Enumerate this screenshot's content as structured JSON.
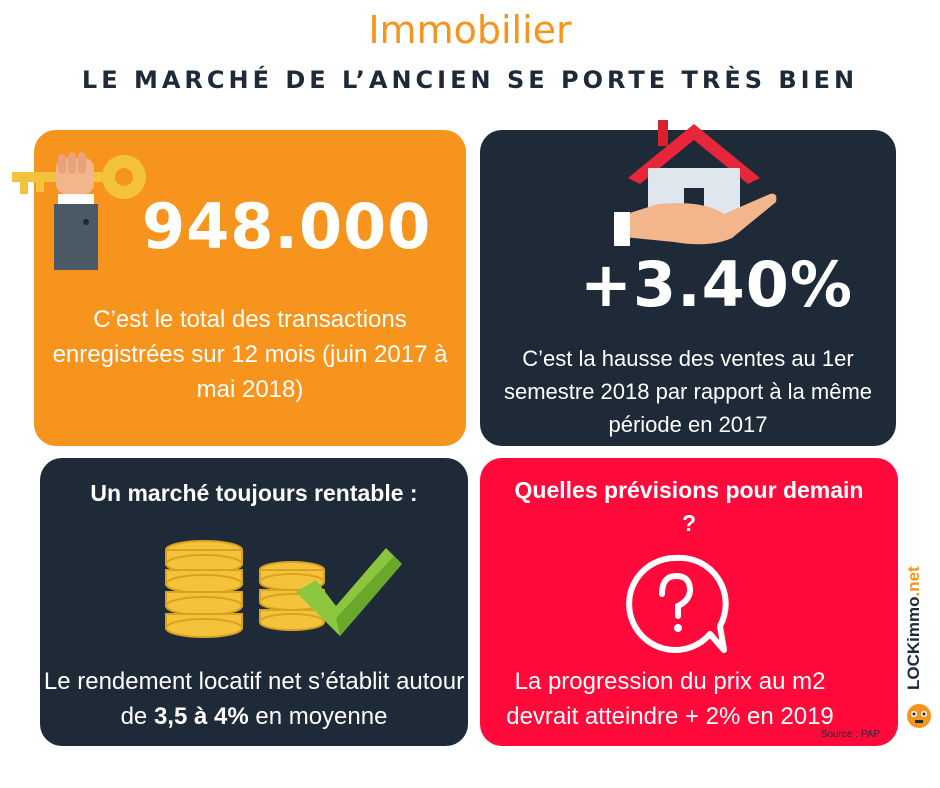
{
  "kicker": "Immobilier",
  "headline": "LE MARCHÉ DE L’ANCIEN SE PORTE TRÈS BIEN",
  "card1": {
    "number": "948.000",
    "text": "C’est le total des transactions enregistrées sur 12 mois (juin 2017 à mai 2018)"
  },
  "card2": {
    "number": "+3.40%",
    "text": "C’est la hausse des ventes au 1er semestre 2018 par rapport à la même période en 2017"
  },
  "card3": {
    "heading": "Un marché toujours rentable :",
    "text_before": "Le rendement locatif net s’établit autour de ",
    "text_bold": "3,5 à 4%",
    "text_after": "  en moyenne"
  },
  "card4": {
    "heading": "Quelles prévisions pour demain ?",
    "text": "La progression du prix au m2 devrait atteindre + 2% en 2019",
    "source": "Source : PAP"
  },
  "brand": {
    "part1": "LOCKimmo",
    "part2": ".net"
  },
  "colors": {
    "orange": "#f7941d",
    "navy": "#1e2a38",
    "red": "#ff0a3a"
  },
  "icons": [
    "key-in-hand-icon",
    "house-in-hand-icon",
    "coins-check-icon",
    "question-bubble-icon",
    "lockimmo-mascot-icon"
  ]
}
